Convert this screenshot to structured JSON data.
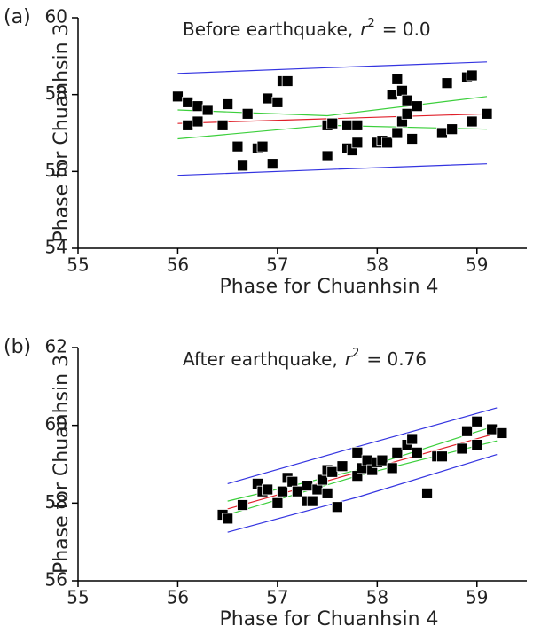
{
  "chart_data": [
    {
      "type": "scatter",
      "panel_label": "(a)",
      "annotation": {
        "text": "Before earthquake,",
        "var": "r",
        "sup": "2",
        "rest": "= 0.0"
      },
      "xlabel": "Phase for Chuanhsin 4",
      "ylabel": "Phase for Chuanhsin 3",
      "xlim": [
        55,
        59.5
      ],
      "ylim": [
        54,
        60
      ],
      "xticks": [
        55,
        56,
        57,
        58,
        59
      ],
      "yticks": [
        54,
        56,
        58,
        60
      ],
      "points": {
        "color": "#000000",
        "x": [
          56.0,
          56.1,
          56.1,
          56.2,
          56.2,
          56.3,
          56.45,
          56.5,
          56.6,
          56.65,
          56.7,
          56.8,
          56.85,
          56.9,
          56.95,
          57.0,
          57.05,
          57.1,
          57.5,
          57.5,
          57.55,
          57.7,
          57.7,
          57.75,
          57.8,
          57.8,
          58.0,
          58.05,
          58.1,
          58.15,
          58.2,
          58.2,
          58.25,
          58.25,
          58.3,
          58.3,
          58.35,
          58.4,
          58.65,
          58.7,
          58.75,
          58.9,
          58.95,
          58.95,
          59.1
        ],
        "y": [
          57.95,
          57.8,
          57.2,
          57.7,
          57.3,
          57.6,
          57.2,
          57.75,
          56.65,
          56.15,
          57.5,
          56.6,
          56.65,
          57.9,
          56.2,
          57.8,
          58.35,
          58.35,
          56.4,
          57.2,
          57.25,
          56.6,
          57.2,
          56.55,
          57.2,
          56.75,
          56.75,
          56.8,
          56.75,
          58.0,
          57.0,
          58.4,
          57.3,
          58.1,
          57.5,
          57.85,
          56.85,
          57.7,
          57.0,
          58.3,
          57.1,
          58.45,
          58.5,
          57.3,
          57.5
        ]
      },
      "lines": [
        {
          "color": "#e0202a",
          "x": [
            56.0,
            59.1
          ],
          "values": [
            57.25,
            57.5
          ]
        },
        {
          "color": "#3ccf3c",
          "x": [
            56.0,
            57.5,
            59.1
          ],
          "values": [
            57.6,
            57.45,
            57.95
          ]
        },
        {
          "color": "#3ccf3c",
          "x": [
            56.0,
            57.5,
            59.1
          ],
          "values": [
            56.85,
            57.2,
            57.1
          ]
        },
        {
          "color": "#3434e0",
          "x": [
            56.0,
            57.5,
            59.1
          ],
          "values": [
            58.55,
            58.7,
            58.85
          ]
        },
        {
          "color": "#3434e0",
          "x": [
            56.0,
            57.5,
            59.1
          ],
          "values": [
            55.9,
            56.05,
            56.2
          ]
        }
      ]
    },
    {
      "type": "scatter",
      "panel_label": "(b)",
      "annotation": {
        "text": "After earthquake,",
        "var": "r",
        "sup": "2",
        "rest": "= 0.76"
      },
      "xlabel": "Phase for Chuanhsin 4",
      "ylabel": "Phase for Chuanhsin 3",
      "xlim": [
        55,
        59.5
      ],
      "ylim": [
        56,
        62
      ],
      "xticks": [
        55,
        56,
        57,
        58,
        59
      ],
      "yticks": [
        56,
        58,
        60,
        62
      ],
      "points": {
        "color": "#000000",
        "x": [
          56.45,
          56.5,
          56.65,
          56.8,
          56.85,
          56.9,
          57.0,
          57.05,
          57.1,
          57.15,
          57.2,
          57.3,
          57.3,
          57.35,
          57.4,
          57.45,
          57.5,
          57.5,
          57.55,
          57.6,
          57.65,
          57.8,
          57.8,
          57.85,
          57.9,
          57.95,
          58.0,
          58.05,
          58.15,
          58.2,
          58.3,
          58.35,
          58.4,
          58.5,
          58.6,
          58.65,
          58.85,
          58.9,
          59.0,
          59.0,
          59.15,
          59.25
        ],
        "y": [
          57.7,
          57.6,
          57.95,
          58.5,
          58.3,
          58.35,
          58.0,
          58.3,
          58.65,
          58.55,
          58.3,
          58.45,
          58.05,
          58.05,
          58.35,
          58.6,
          58.85,
          58.25,
          58.8,
          57.9,
          58.95,
          58.7,
          59.3,
          58.9,
          59.1,
          58.85,
          59.05,
          59.1,
          58.9,
          59.3,
          59.5,
          59.65,
          59.3,
          58.25,
          59.2,
          59.2,
          59.4,
          59.85,
          60.1,
          59.5,
          59.9,
          59.8
        ]
      },
      "lines": [
        {
          "color": "#e0202a",
          "x": [
            56.5,
            59.2
          ],
          "values": [
            57.85,
            59.8
          ]
        },
        {
          "color": "#3ccf3c",
          "x": [
            56.5,
            57.8,
            59.2
          ],
          "values": [
            58.05,
            58.85,
            60.0
          ]
        },
        {
          "color": "#3ccf3c",
          "x": [
            56.5,
            57.8,
            59.2
          ],
          "values": [
            57.7,
            58.7,
            59.6
          ]
        },
        {
          "color": "#3434e0",
          "x": [
            56.5,
            57.8,
            59.2
          ],
          "values": [
            58.5,
            59.45,
            60.45
          ]
        },
        {
          "color": "#3434e0",
          "x": [
            56.5,
            57.8,
            59.2
          ],
          "values": [
            57.25,
            58.15,
            59.25
          ]
        }
      ]
    }
  ]
}
